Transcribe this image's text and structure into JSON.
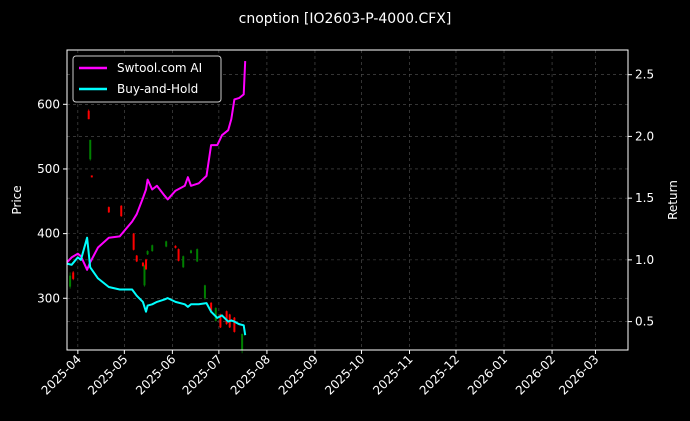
{
  "chart_data": {
    "type": "line",
    "title": "cnoption [IO2603-P-4000.CFX]",
    "ylabel": "Price",
    "y2label": "Return",
    "xlim": [
      "2025-03-25",
      "2026-03-22"
    ],
    "ylim": [
      220,
      684
    ],
    "y2lim": [
      0.27,
      2.7
    ],
    "grid": true,
    "legend_placement": "top-left",
    "xticks": [
      "2025-04",
      "2025-05",
      "2025-06",
      "2025-07",
      "2025-08",
      "2025-09",
      "2025-10",
      "2025-11",
      "2025-12",
      "2026-01",
      "2026-02",
      "2026-03"
    ],
    "yticks": [
      300,
      400,
      500,
      600
    ],
    "y2ticks": [
      0.5,
      1.0,
      1.5,
      2.0,
      2.5
    ],
    "candles": [
      [
        "2025-03-27",
        318,
        340,
        315,
        335
      ],
      [
        "2025-03-29",
        340,
        342,
        328,
        330
      ],
      [
        "2025-04-08",
        590,
        592,
        577,
        577
      ],
      [
        "2025-04-09",
        515,
        545,
        513,
        545
      ],
      [
        "2025-04-10",
        490,
        490,
        487,
        487
      ],
      [
        "2025-04-21",
        441,
        442,
        432,
        433
      ],
      [
        "2025-04-29",
        443,
        444,
        426,
        427
      ],
      [
        "2025-05-07",
        400,
        401,
        374,
        375
      ],
      [
        "2025-05-09",
        366,
        367,
        356,
        357
      ],
      [
        "2025-05-13",
        355,
        356,
        349,
        350
      ],
      [
        "2025-05-14",
        320,
        352,
        318,
        350
      ],
      [
        "2025-05-15",
        360,
        361,
        344,
        345
      ],
      [
        "2025-05-16",
        368,
        374,
        367,
        373
      ],
      [
        "2025-05-19",
        373,
        383,
        372,
        382
      ],
      [
        "2025-05-28",
        380,
        389,
        379,
        388
      ],
      [
        "2025-06-03",
        381,
        382,
        377,
        378
      ],
      [
        "2025-06-05",
        376,
        377,
        357,
        358
      ],
      [
        "2025-06-08",
        348,
        366,
        347,
        365
      ],
      [
        "2025-06-13",
        370,
        375,
        369,
        374
      ],
      [
        "2025-06-17",
        357,
        377,
        356,
        376
      ],
      [
        "2025-06-22",
        300,
        321,
        298,
        320
      ],
      [
        "2025-06-26",
        293,
        294,
        277,
        278
      ],
      [
        "2025-06-29",
        265,
        286,
        264,
        285
      ],
      [
        "2025-07-02",
        275,
        276,
        254,
        255
      ],
      [
        "2025-07-06",
        280,
        281,
        259,
        260
      ],
      [
        "2025-07-08",
        275,
        276,
        254,
        255
      ],
      [
        "2025-07-11",
        270,
        271,
        247,
        248
      ],
      [
        "2025-07-16",
        220,
        245,
        215,
        245
      ]
    ],
    "dates": [
      "2025-03-25",
      "2025-03-28",
      "2025-04-01",
      "2025-04-03",
      "2025-04-07",
      "2025-04-09",
      "2025-04-14",
      "2025-04-21",
      "2025-04-28",
      "2025-05-06",
      "2025-05-09",
      "2025-05-13",
      "2025-05-15",
      "2025-05-16",
      "2025-05-19",
      "2025-05-22",
      "2025-05-27",
      "2025-05-29",
      "2025-06-03",
      "2025-06-09",
      "2025-06-11",
      "2025-06-13",
      "2025-06-18",
      "2025-06-23",
      "2025-06-26",
      "2025-06-30",
      "2025-07-03",
      "2025-07-07",
      "2025-07-09",
      "2025-07-11",
      "2025-07-14",
      "2025-07-17",
      "2025-07-18"
    ],
    "series": [
      {
        "name": "Swtool.com AI",
        "color": "#ff00ff",
        "values": [
          0.98,
          1.02,
          1.05,
          1.03,
          0.92,
          0.98,
          1.1,
          1.18,
          1.19,
          1.31,
          1.37,
          1.5,
          1.57,
          1.65,
          1.57,
          1.6,
          1.52,
          1.49,
          1.56,
          1.6,
          1.67,
          1.6,
          1.62,
          1.68,
          1.93,
          1.93,
          2.01,
          2.05,
          2.14,
          2.3,
          2.31,
          2.34,
          2.61
        ]
      },
      {
        "name": "Buy-and-Hold",
        "color": "#00ffff",
        "values": [
          0.97,
          0.96,
          1.02,
          1.0,
          1.18,
          0.94,
          0.85,
          0.78,
          0.76,
          0.76,
          0.71,
          0.66,
          0.58,
          0.63,
          0.64,
          0.66,
          0.68,
          0.69,
          0.66,
          0.64,
          0.62,
          0.64,
          0.64,
          0.65,
          0.58,
          0.53,
          0.55,
          0.5,
          0.51,
          0.5,
          0.48,
          0.47,
          0.39
        ]
      }
    ],
    "up_color": "#008000",
    "down_color": "#ff0000"
  }
}
